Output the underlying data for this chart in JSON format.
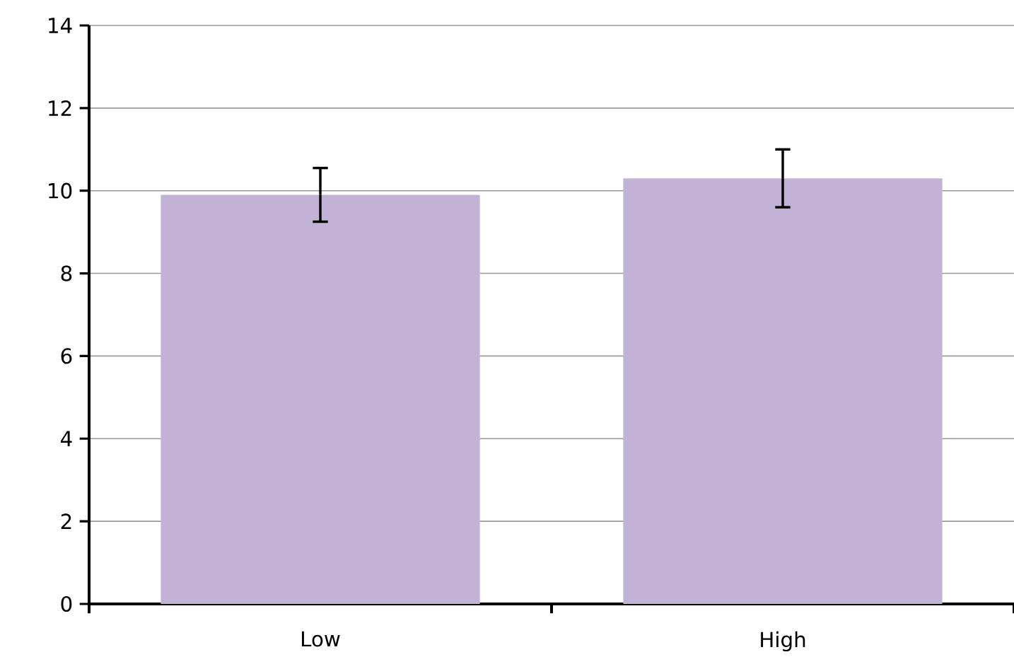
{
  "chart_data": {
    "type": "bar",
    "categories": [
      "Low",
      "High"
    ],
    "values": [
      9.9,
      10.3
    ],
    "errors": [
      0.65,
      0.7
    ],
    "color": "#c2b3d6",
    "ylim": [
      0,
      14
    ],
    "yticks": [
      0,
      2,
      4,
      6,
      8,
      10,
      12,
      14
    ],
    "grid": "y"
  }
}
